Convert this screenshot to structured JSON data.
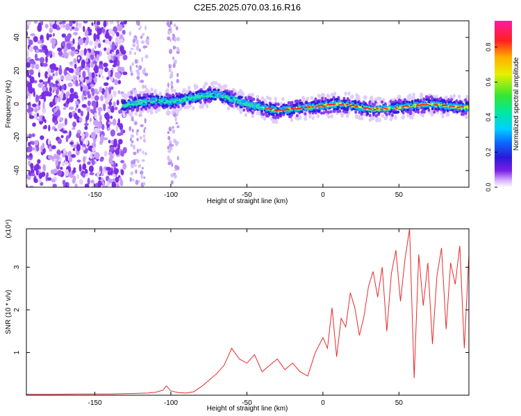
{
  "title": "C2E5.2025.070.03.16.R16",
  "colors": {
    "snr_line": "#e8282a",
    "axis": "#000000",
    "background": "#ffffff"
  },
  "chart_data": [
    {
      "type": "heatmap",
      "xlabel": "Height of straight line (km)",
      "ylabel": "Frequency (Hz)",
      "xlim": [
        -195,
        96
      ],
      "ylim": [
        -50,
        50
      ],
      "xticks": [
        "-150",
        "-100",
        "-50",
        "0",
        "50"
      ],
      "xtick_values": [
        -150,
        -100,
        -50,
        0,
        50
      ],
      "yticks": [
        "-40",
        "-20",
        "0",
        "20",
        "40"
      ],
      "ytick_values": [
        -40,
        -20,
        0,
        20,
        40
      ],
      "colorbar": {
        "label": "Normalized spectral amplitude",
        "ticks": [
          "0.0",
          "0.2",
          "0.4",
          "0.6",
          "0.8"
        ],
        "tick_values": [
          0.0,
          0.2,
          0.4,
          0.6,
          0.8
        ],
        "range": [
          0,
          0.95
        ],
        "colormap": "rainbow (violet to red)"
      },
      "doppler_ridge": {
        "x": [
          -132,
          -120,
          -110,
          -100,
          -90,
          -80,
          -70,
          -60,
          -50,
          -40,
          -30,
          -20,
          -10,
          0,
          10,
          20,
          30,
          40,
          50,
          60,
          70,
          80,
          90,
          96
        ],
        "freq_hz": [
          -1,
          1,
          2,
          1,
          3,
          5,
          6,
          3,
          0,
          -2,
          -4,
          -3,
          -2,
          -1,
          0,
          -1,
          -3,
          -3,
          -2,
          -1,
          0,
          -1,
          -2,
          -2
        ]
      },
      "noise_region_x": [
        -195,
        -130
      ]
    },
    {
      "type": "line",
      "xlabel": "Height of straight line (km)",
      "ylabel": "SNR (10 * v/v)",
      "multiplier": "(x10⁴)",
      "xlim": [
        -195,
        96
      ],
      "ylim": [
        0,
        3.9
      ],
      "xticks": [
        "-150",
        "-100",
        "-50",
        "0",
        "50"
      ],
      "xtick_values": [
        -150,
        -100,
        -50,
        0,
        50
      ],
      "yticks": [
        "1",
        "2",
        "3"
      ],
      "ytick_values": [
        1,
        2,
        3
      ],
      "series": [
        {
          "x": [
            -195,
            -180,
            -160,
            -140,
            -125,
            -115,
            -110,
            -105,
            -103,
            -100,
            -95,
            -90,
            -85,
            -80,
            -75,
            -70,
            -65,
            -60,
            -55,
            -50,
            -45,
            -40,
            -35,
            -30,
            -25,
            -20,
            -15,
            -10,
            -5,
            0,
            3,
            6,
            9,
            12,
            15,
            18,
            21,
            24,
            27,
            30,
            33,
            36,
            39,
            42,
            45,
            48,
            51,
            54,
            57,
            60,
            63,
            66,
            69,
            72,
            75,
            78,
            81,
            84,
            87,
            90,
            93,
            96
          ],
          "y": [
            0.02,
            0.02,
            0.03,
            0.03,
            0.04,
            0.05,
            0.07,
            0.12,
            0.22,
            0.1,
            0.06,
            0.05,
            0.08,
            0.2,
            0.35,
            0.5,
            0.7,
            1.1,
            0.85,
            0.75,
            0.95,
            0.55,
            0.7,
            0.85,
            0.6,
            0.75,
            0.55,
            0.45,
            1.0,
            1.35,
            1.1,
            2.05,
            0.9,
            1.8,
            1.6,
            2.4,
            2.05,
            1.4,
            1.85,
            2.55,
            2.9,
            2.3,
            3.0,
            1.5,
            2.85,
            3.4,
            2.2,
            3.2,
            3.9,
            0.4,
            3.3,
            2.1,
            3.1,
            1.2,
            2.8,
            3.45,
            1.55,
            3.1,
            2.6,
            3.5,
            1.1,
            3.3
          ]
        }
      ]
    }
  ]
}
